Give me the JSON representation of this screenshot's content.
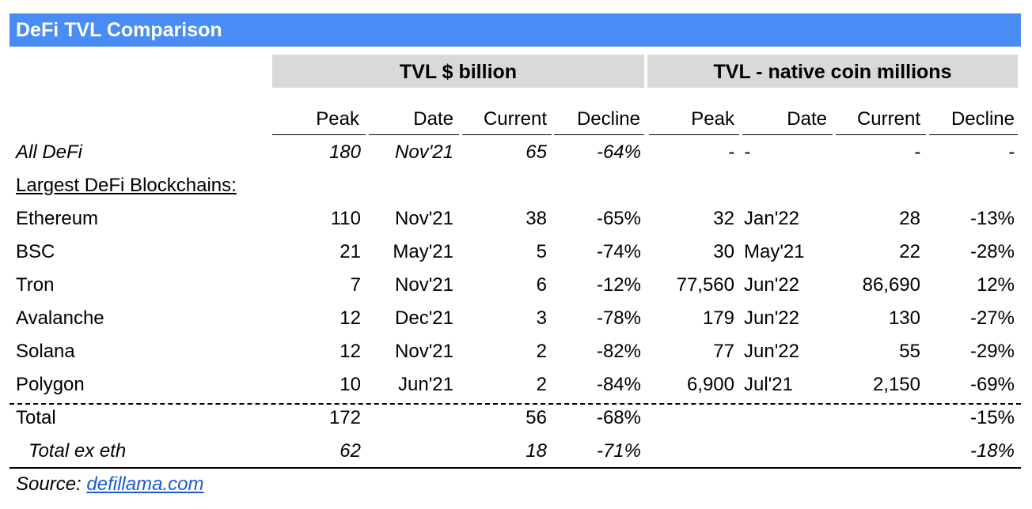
{
  "title": "DeFi TVL Comparison",
  "groups": {
    "usd": "TVL $ billion",
    "native": "TVL - native coin millions"
  },
  "columns": [
    "Peak",
    "Date",
    "Current",
    "Decline",
    "Peak",
    "Date",
    "Current",
    "Decline"
  ],
  "section_label": "Largest DeFi Blockchains:",
  "rows": [
    {
      "name": "All DeFi",
      "cells": [
        "180",
        "Nov'21",
        "65",
        "-64%",
        "-",
        "-",
        "-",
        "-"
      ]
    },
    {
      "name": "Ethereum",
      "cells": [
        "110",
        "Nov'21",
        "38",
        "-65%",
        "32",
        "Jan'22",
        "28",
        "-13%"
      ]
    },
    {
      "name": "BSC",
      "cells": [
        "21",
        "May'21",
        "5",
        "-74%",
        "30",
        "May'21",
        "22",
        "-28%"
      ]
    },
    {
      "name": "Tron",
      "cells": [
        "7",
        "Nov'21",
        "6",
        "-12%",
        "77,560",
        "Jun'22",
        "86,690",
        "12%"
      ]
    },
    {
      "name": "Avalanche",
      "cells": [
        "12",
        "Dec'21",
        "3",
        "-78%",
        "179",
        "Jun'22",
        "130",
        "-27%"
      ]
    },
    {
      "name": "Solana",
      "cells": [
        "12",
        "Nov'21",
        "2",
        "-82%",
        "77",
        "Jun'22",
        "55",
        "-29%"
      ]
    },
    {
      "name": "Polygon",
      "cells": [
        "10",
        "Jun'21",
        "2",
        "-84%",
        "6,900",
        "Jul'21",
        "2,150",
        "-69%"
      ]
    },
    {
      "name": "Total",
      "cells": [
        "172",
        "",
        "56",
        "-68%",
        "",
        "",
        "",
        "-15%"
      ]
    },
    {
      "name": "Total ex eth",
      "cells": [
        "62",
        "",
        "18",
        "-71%",
        "",
        "",
        "",
        "-18%"
      ]
    }
  ],
  "source": {
    "label": "Source:",
    "link": "defillama.com"
  },
  "colors": {
    "title_bg": "#4a8cf5",
    "group_bg": "#d9d9d9",
    "link": "#1a5ad8"
  }
}
